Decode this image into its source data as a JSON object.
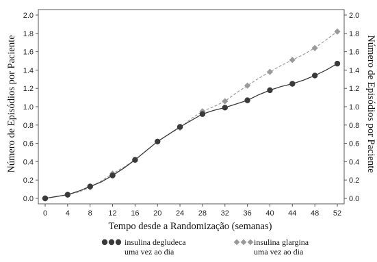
{
  "chart_data": {
    "type": "line",
    "title": "",
    "xlabel": "Tempo desde a Randomização (semanas)",
    "ylabel": "Número de Episódios por Paciente",
    "ylabel_right": "Número de Episódios por Paciente",
    "xlim": [
      0,
      52
    ],
    "ylim": [
      0.0,
      2.0
    ],
    "x_ticks": [
      "0",
      "4",
      "8",
      "12",
      "16",
      "20",
      "24",
      "28",
      "32",
      "36",
      "40",
      "44",
      "48",
      "52"
    ],
    "y_ticks": [
      "0.0",
      "0.2",
      "0.4",
      "0.6",
      "0.8",
      "1.0",
      "1.2",
      "1.4",
      "1.6",
      "1.8",
      "2.0"
    ],
    "grid": false,
    "legend_position": "bottom",
    "series": [
      {
        "name": "insulina degludeca uma vez ao dia",
        "legend_line1": "insulina degludeca",
        "legend_line2": "uma vez ao dia",
        "color": "#3a3a3a",
        "marker": "circle",
        "line_style": "solid",
        "marker_x": [
          0,
          4,
          8,
          12,
          16,
          20,
          24,
          28,
          32,
          36,
          40,
          44,
          48,
          52
        ],
        "marker_y": [
          0.0,
          0.04,
          0.13,
          0.25,
          0.42,
          0.62,
          0.78,
          0.92,
          0.99,
          1.07,
          1.18,
          1.25,
          1.34,
          1.47
        ],
        "x": [
          0,
          2,
          4,
          6,
          8,
          10,
          12,
          14,
          16,
          18,
          20,
          22,
          24,
          26,
          28,
          30,
          32,
          34,
          36,
          38,
          40,
          42,
          44,
          46,
          48,
          50,
          52
        ],
        "y": [
          0.0,
          0.02,
          0.04,
          0.08,
          0.13,
          0.18,
          0.25,
          0.33,
          0.42,
          0.52,
          0.62,
          0.7,
          0.78,
          0.85,
          0.92,
          0.96,
          0.99,
          1.03,
          1.07,
          1.13,
          1.18,
          1.22,
          1.25,
          1.29,
          1.34,
          1.4,
          1.47
        ]
      },
      {
        "name": "insulina glargina uma vez ao dia",
        "legend_line1": "insulina glargina",
        "legend_line2": "uma vez ao dia",
        "color": "#9a9a9a",
        "marker": "diamond",
        "line_style": "dashed",
        "marker_x": [
          0,
          4,
          8,
          12,
          16,
          20,
          24,
          28,
          32,
          36,
          40,
          44,
          48,
          52
        ],
        "marker_y": [
          0.0,
          0.04,
          0.12,
          0.27,
          0.42,
          0.62,
          0.77,
          0.95,
          1.06,
          1.23,
          1.38,
          1.51,
          1.64,
          1.82
        ],
        "x": [
          0,
          2,
          4,
          6,
          8,
          10,
          12,
          14,
          16,
          18,
          20,
          22,
          24,
          26,
          28,
          30,
          32,
          34,
          36,
          38,
          40,
          42,
          44,
          46,
          48,
          50,
          52
        ],
        "y": [
          0.0,
          0.02,
          0.04,
          0.07,
          0.12,
          0.19,
          0.27,
          0.34,
          0.42,
          0.52,
          0.62,
          0.7,
          0.77,
          0.87,
          0.95,
          1.0,
          1.06,
          1.15,
          1.23,
          1.31,
          1.38,
          1.45,
          1.51,
          1.57,
          1.64,
          1.73,
          1.82
        ]
      }
    ]
  }
}
